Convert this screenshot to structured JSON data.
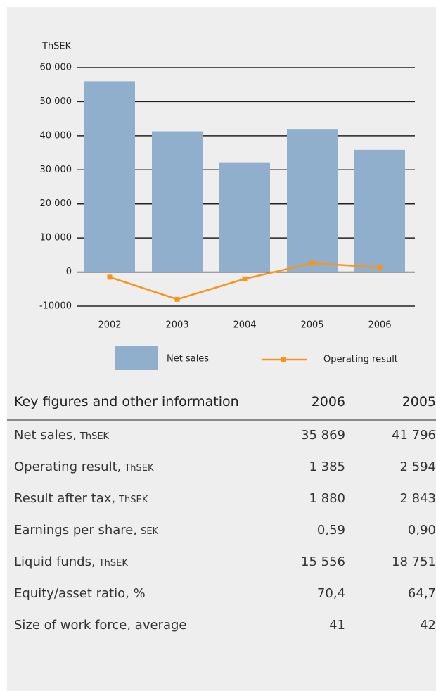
{
  "chart_data": {
    "type": "bar",
    "y_label": "ThSEK",
    "categories": [
      "2002",
      "2003",
      "2004",
      "2005",
      "2006"
    ],
    "series": [
      {
        "name": "Net sales",
        "type": "bar",
        "color": "#8fafcd",
        "values": [
          56000,
          41300,
          32200,
          41796,
          35869
        ]
      },
      {
        "name": "Operating result",
        "type": "line",
        "color": "#f7941d",
        "values": [
          -1500,
          -8000,
          -2000,
          2594,
          1385
        ]
      }
    ],
    "ylim": [
      -10000,
      60000
    ],
    "yticks": [
      -10000,
      0,
      {
        "value": 10000,
        "label": "10 000"
      },
      {
        "value": 20000,
        "label": "20 000"
      },
      {
        "value": 30000,
        "label": "30 000"
      },
      {
        "value": 40000,
        "label": "40 000"
      },
      {
        "value": 50000,
        "label": "50 000"
      },
      {
        "value": 60000,
        "label": "60 000"
      }
    ],
    "grid": true
  },
  "table": {
    "header": [
      "Key figures and other information",
      "2006",
      "2005"
    ],
    "rows": [
      {
        "label": "Net sales,",
        "unit": "ThSEK",
        "values": [
          "35 869",
          "41 796"
        ]
      },
      {
        "label": "Operating result,",
        "unit": "ThSEK",
        "values": [
          "1 385",
          "2 594"
        ]
      },
      {
        "label": "Result after tax,",
        "unit": "ThSEK",
        "values": [
          "1 880",
          "2 843"
        ]
      },
      {
        "label": "Earnings per share,",
        "unit": "SEK",
        "values": [
          "0,59",
          "0,90"
        ]
      },
      {
        "label": "Liquid funds,",
        "unit": "ThSEK",
        "values": [
          "15 556",
          "18 751"
        ]
      },
      {
        "label": "Equity/asset ratio, %",
        "values": [
          "70,4",
          "64,7"
        ]
      },
      {
        "label": "Size of work force, average",
        "values": [
          "41",
          "42"
        ]
      }
    ]
  }
}
